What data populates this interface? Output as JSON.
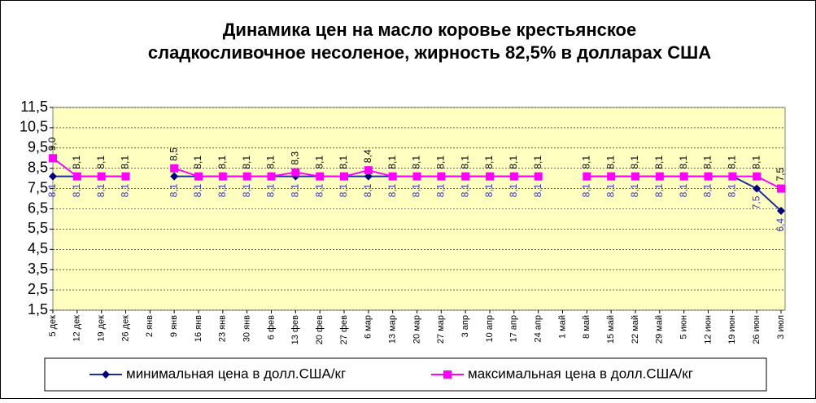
{
  "chart_data": {
    "type": "line",
    "title": [
      "Динамика цен на масло коровье крестьянское",
      "сладкосливочное несоленое, жирность 82,5%  в долларах США"
    ],
    "categories": [
      "5 дек",
      "12 дек",
      "19 дек",
      "26 дек",
      "2 янв",
      "9 янв",
      "16 янв",
      "23 янв",
      "30 янв",
      "6 фев",
      "13 фев",
      "20 фев",
      "27 фев",
      "6 мар",
      "13 мар",
      "20 мар",
      "27 мар",
      "3 апр",
      "10 апр",
      "17 апр",
      "24 апр",
      "1 май",
      "8 май",
      "15 май",
      "22 май",
      "29 май",
      "5 июн",
      "12 июн",
      "19 июн",
      "26 июн",
      "3 июл"
    ],
    "series": [
      {
        "name": "минимальная  цена  в долл.США/кг",
        "color": "#1a2f9c",
        "marker": "diamond",
        "label_position": "below",
        "values": [
          8.1,
          8.1,
          8.1,
          8.1,
          null,
          8.1,
          8.1,
          8.1,
          8.1,
          8.1,
          8.1,
          8.1,
          8.1,
          8.1,
          8.1,
          8.1,
          8.1,
          8.1,
          8.1,
          8.1,
          8.1,
          null,
          8.1,
          8.1,
          8.1,
          8.1,
          8.1,
          8.1,
          8.1,
          7.5,
          6.4
        ],
        "value_labels": [
          "8,1",
          "8,1",
          "8,1",
          "8,1",
          null,
          "8,1",
          "8,1",
          "8,1",
          "8,1",
          "8,1",
          "8,1",
          "8,1",
          "8,1",
          "8,1",
          "8,1",
          "8,1",
          "8,1",
          "8,1",
          "8,1",
          "8,1",
          "8,1",
          null,
          "8,1",
          "8,1",
          "8,1",
          "8,1",
          "8,1",
          "8,1",
          "8,1",
          "7,5",
          "6,4"
        ]
      },
      {
        "name": "максимальная  цена  в долл.США/кг",
        "color": "#ff00ff",
        "marker": "square",
        "label_position": "above",
        "values": [
          9.0,
          8.1,
          8.1,
          8.1,
          null,
          8.5,
          8.1,
          8.1,
          8.1,
          8.1,
          8.3,
          8.1,
          8.1,
          8.4,
          8.1,
          8.1,
          8.1,
          8.1,
          8.1,
          8.1,
          8.1,
          null,
          8.1,
          8.1,
          8.1,
          8.1,
          8.1,
          8.1,
          8.1,
          8.1,
          7.5
        ],
        "value_labels": [
          "9,0",
          "8,1",
          "8,1",
          "8,1",
          null,
          "8,5",
          "8,1",
          "8,1",
          "8,1",
          "8,1",
          "8,3",
          "8,1",
          "8,1",
          "8,4",
          "8,1",
          "8,1",
          "8,1",
          "8,1",
          "8,1",
          "8,1",
          "8,1",
          null,
          "8,1",
          "8,1",
          "8,1",
          "8,1",
          "8,1",
          "8,1",
          "8,1",
          "8,1",
          "7,5"
        ]
      }
    ],
    "ylim": [
      1.5,
      11.5
    ],
    "yticks": [
      {
        "value": 1.5,
        "label": "1,5"
      },
      {
        "value": 2.5,
        "label": "2,5"
      },
      {
        "value": 3.5,
        "label": "3,5"
      },
      {
        "value": 4.5,
        "label": "4,5"
      },
      {
        "value": 5.5,
        "label": "5,5"
      },
      {
        "value": 6.5,
        "label": "6,5"
      },
      {
        "value": 7.5,
        "label": "7,5"
      },
      {
        "value": 8.5,
        "label": "8,5"
      },
      {
        "value": 9.5,
        "label": "9,5"
      },
      {
        "value": 10.5,
        "label": "10,5"
      },
      {
        "value": 11.5,
        "label": "11,5"
      }
    ],
    "grid": true,
    "legend": "bottom"
  }
}
